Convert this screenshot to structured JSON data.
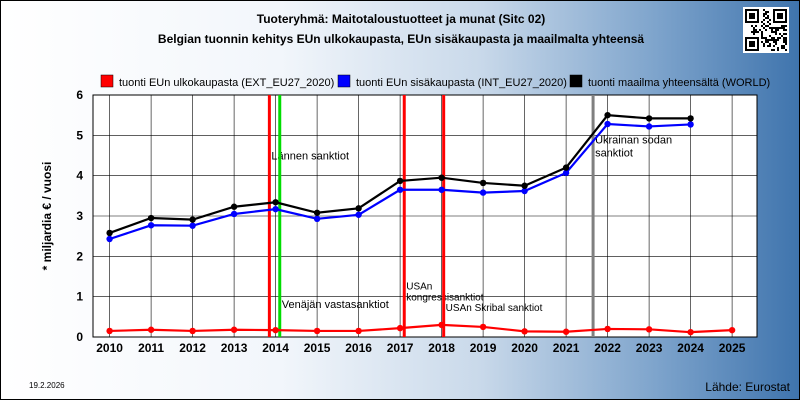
{
  "chart_data": {
    "type": "line",
    "title": "Tuoteryhmä: Maitotaloustuotteet ja munat (Sitc 02)",
    "subtitle": "Belgian tuonnin kehitys EUn ulkokaupasta, EUn sisäkaupasta ja maailmalta yhteensä",
    "ylabel": "* miljardia € / vuosi",
    "xlabel": "",
    "x": [
      2010,
      2011,
      2012,
      2013,
      2014,
      2015,
      2016,
      2017,
      2018,
      2019,
      2020,
      2021,
      2022,
      2023,
      2024,
      2025
    ],
    "xlim": [
      2009.6,
      2025.6
    ],
    "ylim": [
      0,
      6
    ],
    "yticks": [
      0,
      1,
      2,
      3,
      4,
      5,
      6
    ],
    "grid": true,
    "legend_position": "top",
    "series": [
      {
        "name": "tuonti EUn ulkokaupasta (EXT_EU27_2020)",
        "color": "#ff0000",
        "values": [
          0.15,
          0.18,
          0.15,
          0.18,
          0.17,
          0.15,
          0.15,
          0.22,
          0.3,
          0.25,
          0.14,
          0.13,
          0.2,
          0.19,
          0.12,
          0.17
        ]
      },
      {
        "name": "tuonti EUn sisäkaupasta (INT_EU27_2020)",
        "color": "#0000ff",
        "values": [
          2.43,
          2.77,
          2.76,
          3.05,
          3.17,
          2.93,
          3.03,
          3.65,
          3.65,
          3.58,
          3.62,
          4.07,
          5.28,
          5.22,
          5.27,
          null
        ]
      },
      {
        "name": "tuonti maailma yhteensältä (WORLD)",
        "color": "#000000",
        "values": [
          2.58,
          2.95,
          2.91,
          3.23,
          3.34,
          3.08,
          3.19,
          3.87,
          3.95,
          3.82,
          3.75,
          4.2,
          5.5,
          5.42,
          5.42,
          null
        ]
      }
    ],
    "events": [
      {
        "x": 2013.85,
        "color": "#ff0000",
        "labels": [
          "Lännen sanktiot"
        ],
        "label_y": 4.4,
        "style": "big"
      },
      {
        "x": 2014.1,
        "color": "#00dd00",
        "labels": [
          "Venäjän vastasanktiot"
        ],
        "label_y": 0.72,
        "style": "big"
      },
      {
        "x": 2017.1,
        "color": "#ff0000",
        "labels": [
          "USAn",
          "kongressisanktiot"
        ],
        "label_y": 1.18,
        "style": "small"
      },
      {
        "x": 2018.05,
        "color": "#ff0000",
        "labels": [
          "USAn Skribal sanktiot"
        ],
        "label_y": 0.64,
        "style": "small"
      },
      {
        "x": 2021.65,
        "color": "#808080",
        "labels": [
          "Ukrainan sodan",
          "sanktiot"
        ],
        "label_y": 4.8,
        "style": "big"
      }
    ]
  },
  "footer": {
    "source": "Lähde: Eurostat",
    "date": "19.2.2026"
  },
  "qr_icon": "qr-code-icon"
}
